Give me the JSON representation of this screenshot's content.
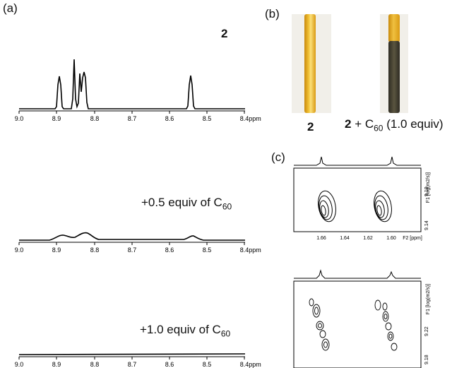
{
  "panels": {
    "a": "(a)",
    "b": "(b)",
    "c": "(c)"
  },
  "spectra": {
    "compound": "2",
    "axis_unit": "ppm",
    "ticks": [
      "9.0",
      "8.9",
      "8.8",
      "8.7",
      "8.6",
      "8.5",
      "8.4"
    ],
    "traces": [
      {
        "label": "",
        "peaks": [
          8.885,
          8.845,
          8.828,
          8.818,
          8.528
        ]
      },
      {
        "label": "+0.5 equiv of C",
        "label_sub": "60"
      },
      {
        "label": "+1.0 equiv of C",
        "label_sub": "60"
      }
    ]
  },
  "photos": {
    "left_caption": "2",
    "right_caption_bold": "2",
    "right_caption_rest": " + C",
    "right_caption_sub": "60",
    "right_caption_end": " (1.0 equiv)",
    "left_color": "#f0b21c",
    "right_color": "#4a4636"
  },
  "dosy": {
    "top": {
      "x_ticks": [
        "1.66",
        "1.64",
        "1.62",
        "1.60",
        "F2 [ppm]"
      ],
      "y_ticks": [
        "9.18",
        "9.14"
      ],
      "y_label": "F1 [log(m2/s)]"
    },
    "bottom": {
      "y_ticks": [
        "9.22",
        "9.18"
      ],
      "y_label": "F1 [log(m2/s)]"
    }
  }
}
